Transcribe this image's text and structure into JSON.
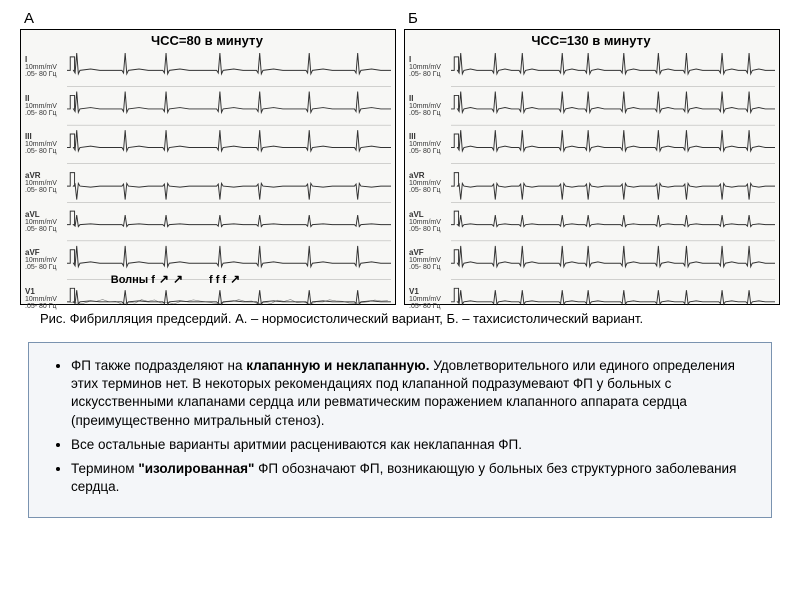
{
  "panelA": {
    "letter": "А",
    "title": "ЧСС=80 в минуту",
    "leads": [
      "I",
      "II",
      "III",
      "aVR",
      "aVL",
      "aVF",
      "V1"
    ],
    "lead_sub1": "10mm/mV",
    "lead_sub2": ".05- 80 Гц",
    "beats_per_row": 7,
    "f_wave_text": "Волны  f",
    "f_wave_markers": "f  f  f",
    "trace_color": "#333333",
    "grid_color": "rgba(0,0,0,0.25)",
    "bg_color": "#f7f7f5"
  },
  "panelB": {
    "letter": "Б",
    "title": "ЧСС=130 в минуту",
    "leads": [
      "I",
      "II",
      "III",
      "aVR",
      "aVL",
      "aVF",
      "V1"
    ],
    "lead_sub1": "10mm/mV",
    "lead_sub2": ".05- 80 Гц",
    "beats_per_row": 10,
    "trace_color": "#333333",
    "grid_color": "rgba(0,0,0,0.25)",
    "bg_color": "#f7f7f5"
  },
  "caption": "Рис. Фибрилляция предсердий. А. – нормосистолический вариант, Б. – тахисистолический вариант.",
  "bullets": [
    "ФП также подразделяют на <b>клапанную и неклапанную.</b> Удовлетворительного или единого определения этих терминов нет. В некоторых  рекомендациях под клапанной подразумевают ФП у больных с искусственными клапанами сердца или ревматическим поражением клапанного аппарата сердца (преимущественно митральный стеноз).",
    "Все остальные варианты аритмии расцениваются как неклапанная ФП.",
    "Термином <b>\"изолированная\"</b> ФП обозначают ФП, возникающую у больных без структурного заболевания сердца."
  ]
}
